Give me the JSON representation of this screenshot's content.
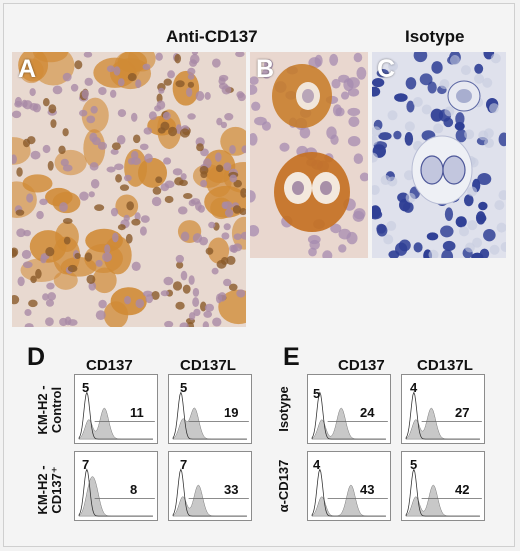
{
  "figure": {
    "header_anti": "Anti-CD137",
    "header_isotype": "Isotype",
    "panel_letters": [
      "A",
      "B",
      "C",
      "D",
      "E"
    ],
    "colors": {
      "stain_brown": "#c07a2a",
      "hematoxylin": "#3a4aa0",
      "histogram_fill": "#c8c8c8"
    }
  },
  "flow_d": {
    "columns": [
      "CD137",
      "CD137L"
    ],
    "rows": [
      "KM-H2 -\nControl",
      "KM-H2 -\nCD137⁺"
    ],
    "values": [
      {
        "left": "5",
        "right": "11"
      },
      {
        "left": "5",
        "right": "19"
      },
      {
        "left": "7",
        "right": "8"
      },
      {
        "left": "7",
        "right": "33"
      }
    ]
  },
  "flow_e": {
    "columns": [
      "CD137",
      "CD137L"
    ],
    "rows": [
      "Isotype",
      "α-CD137"
    ],
    "values": [
      {
        "left": "5",
        "right": "24"
      },
      {
        "left": "4",
        "right": "27"
      },
      {
        "left": "4",
        "right": "43"
      },
      {
        "left": "5",
        "right": "42"
      }
    ]
  }
}
